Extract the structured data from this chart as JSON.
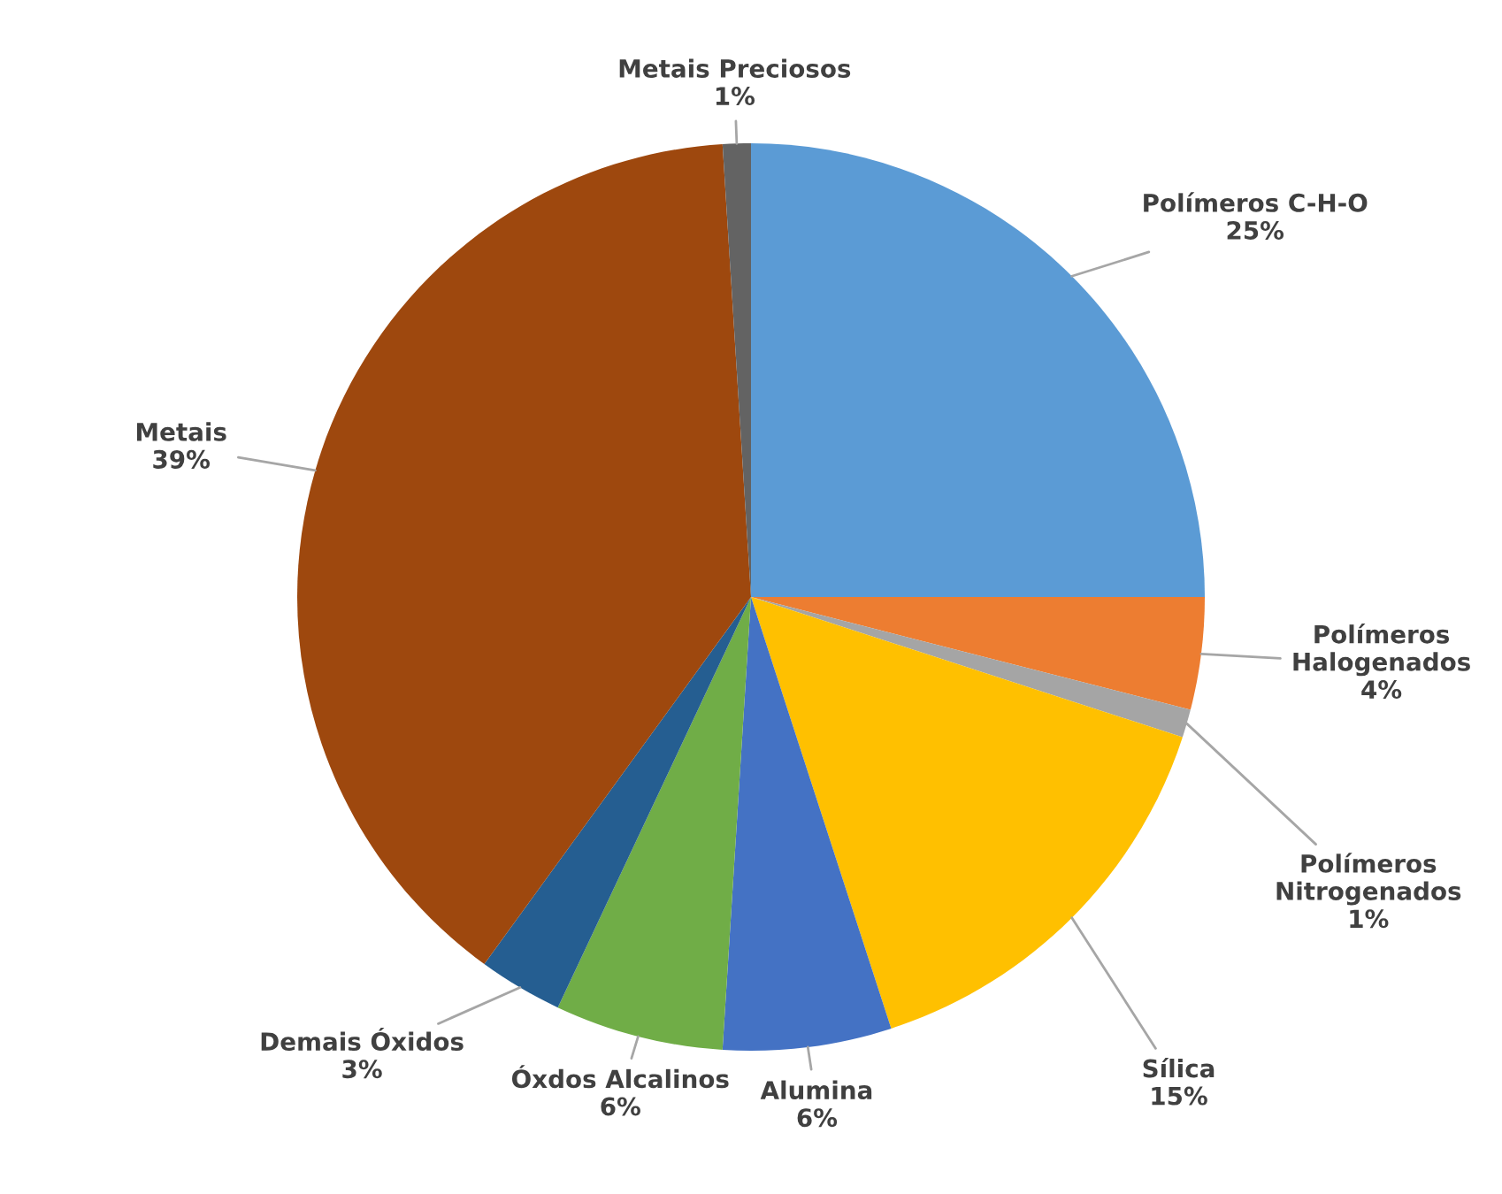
{
  "chart_data": {
    "type": "pie",
    "categories": [
      "Polímeros C-H-O",
      "Polímeros Halogenados",
      "Polímeros Nitrogenados",
      "Sílica",
      "Alumina",
      "Óxdos Alcalinos",
      "Demais Óxidos",
      "Metais",
      "Metais Preciosos"
    ],
    "values": [
      25,
      4,
      1,
      15,
      6,
      6,
      3,
      39,
      1
    ],
    "value_labels": [
      "25%",
      "4%",
      "1%",
      "15%",
      "6%",
      "6%",
      "3%",
      "39%",
      "1%"
    ],
    "colors": [
      "#5b9bd5",
      "#ed7d31",
      "#a5a5a5",
      "#ffc000",
      "#4472c4",
      "#70ad47",
      "#255e91",
      "#9e480e",
      "#636363"
    ]
  }
}
